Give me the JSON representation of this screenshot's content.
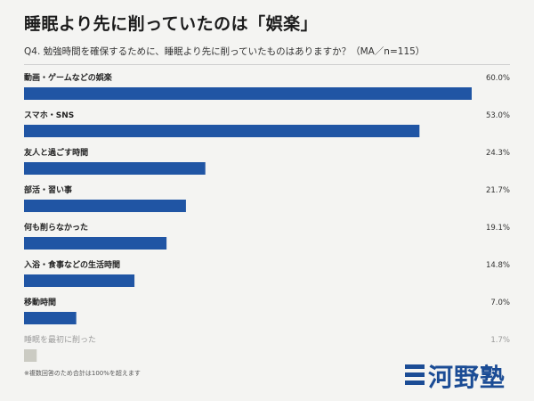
{
  "header": {
    "title": "睡眠より先に削っていたのは「娯楽」",
    "subtitle": "Q4. 勉強時間を確保するために、睡眠より先に削っていたものはありますか？（MA／n=115）"
  },
  "footnote": "※複数回答のため合計は100%を超えます",
  "logo": {
    "text": "河野塾"
  },
  "colors": {
    "bar": "#2055a4",
    "bar_muted": "#cbcbc3",
    "label_muted": "#9a9a9a"
  },
  "chart_data": {
    "type": "bar",
    "orientation": "horizontal",
    "categories": [
      "動画・ゲームなどの娯楽",
      "スマホ・SNS",
      "友人と過ごす時間",
      "部活・習い事",
      "何も削らなかった",
      "入浴・食事などの生活時間",
      "移動時間",
      "睡眠を最初に削った"
    ],
    "values": [
      60.0,
      53.0,
      24.3,
      21.7,
      19.1,
      14.8,
      7.0,
      1.7
    ],
    "value_labels": [
      "60.0%",
      "53.0%",
      "24.3%",
      "21.7%",
      "19.1%",
      "14.8%",
      "7.0%",
      "1.7%"
    ],
    "muted": [
      false,
      false,
      false,
      false,
      false,
      false,
      false,
      true
    ],
    "xlim": [
      0,
      60
    ]
  }
}
